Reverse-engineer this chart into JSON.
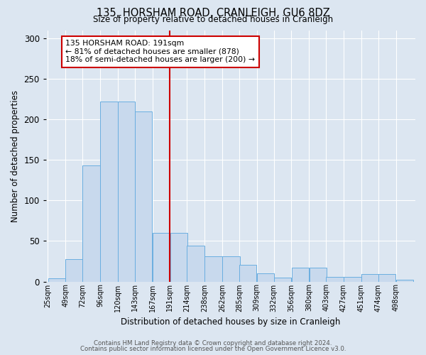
{
  "title": "135, HORSHAM ROAD, CRANLEIGH, GU6 8DZ",
  "subtitle": "Size of property relative to detached houses in Cranleigh",
  "xlabel": "Distribution of detached houses by size in Cranleigh",
  "ylabel": "Number of detached properties",
  "bin_labels": [
    "25sqm",
    "49sqm",
    "72sqm",
    "96sqm",
    "120sqm",
    "143sqm",
    "167sqm",
    "191sqm",
    "214sqm",
    "238sqm",
    "262sqm",
    "285sqm",
    "309sqm",
    "332sqm",
    "356sqm",
    "380sqm",
    "403sqm",
    "427sqm",
    "451sqm",
    "474sqm",
    "498sqm"
  ],
  "bin_left_edges": [
    25,
    49,
    72,
    96,
    120,
    143,
    167,
    191,
    214,
    238,
    262,
    285,
    309,
    332,
    356,
    380,
    403,
    427,
    451,
    474,
    498
  ],
  "bar_heights": [
    4,
    28,
    143,
    222,
    222,
    210,
    60,
    60,
    44,
    31,
    31,
    21,
    10,
    5,
    17,
    17,
    6,
    6,
    9,
    9,
    2
  ],
  "bar_facecolor": "#c8d9ed",
  "bar_edgecolor": "#6aaee0",
  "vline_x": 191,
  "vline_color": "#cc0000",
  "annotation_text": "135 HORSHAM ROAD: 191sqm\n← 81% of detached houses are smaller (878)\n18% of semi-detached houses are larger (200) →",
  "annotation_box_edgecolor": "#cc0000",
  "annotation_box_facecolor": "#ffffff",
  "ylim": [
    0,
    310
  ],
  "yticks": [
    0,
    50,
    100,
    150,
    200,
    250,
    300
  ],
  "background_color": "#dce6f1",
  "plot_bg_color": "#dce6f1",
  "grid_color": "#ffffff",
  "footer_line1": "Contains HM Land Registry data © Crown copyright and database right 2024.",
  "footer_line2": "Contains public sector information licensed under the Open Government Licence v3.0."
}
